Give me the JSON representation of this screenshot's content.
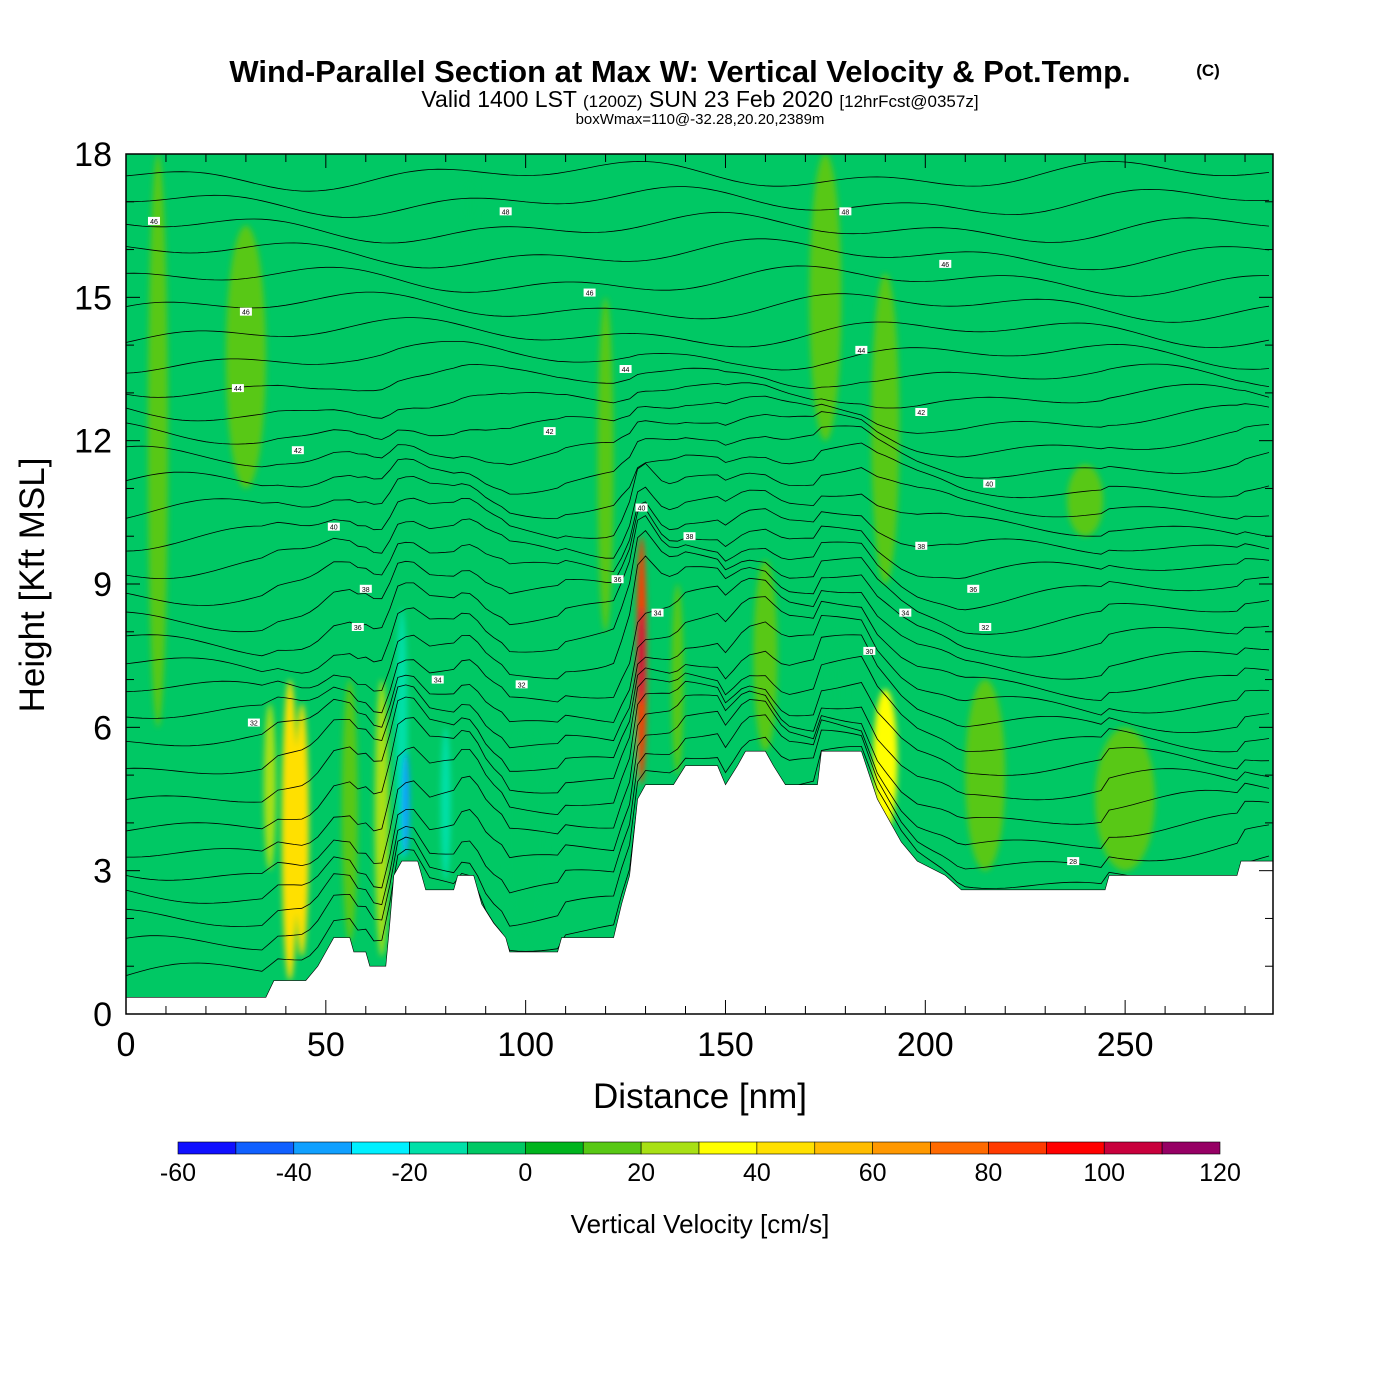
{
  "header": {
    "title": "Wind-Parallel Section at Max W: Vertical Velocity & Pot.Temp.",
    "copyright": "(C)",
    "valid_prefix": "Valid 1400 LST",
    "valid_utc": "(1200Z)",
    "valid_date": "SUN 23 Feb 2020",
    "forecast": "[12hrFcst@0357z]",
    "box_info": "boxWmax=110@-32.28,20.20,2389m"
  },
  "chart_data": {
    "type": "heatmap",
    "title": "Wind-Parallel Section at Max W: Vertical Velocity & Pot.Temp.",
    "xlabel": "Distance [nm]",
    "ylabel": "Height [Kft MSL]",
    "xlim": [
      0,
      287
    ],
    "ylim": [
      0,
      18
    ],
    "x_ticks": [
      0,
      50,
      100,
      150,
      200,
      250
    ],
    "x_tick_labels": [
      "0",
      "50",
      "100",
      "150",
      "200",
      "250"
    ],
    "y_ticks": [
      0,
      3,
      6,
      9,
      12,
      15,
      18
    ],
    "y_tick_labels": [
      "0",
      "3",
      "6",
      "9",
      "12",
      "15",
      "18"
    ],
    "colorbar": {
      "label": "Vertical Velocity [cm/s]",
      "min": -60,
      "max": 120,
      "step": 10,
      "tick_labels": [
        "-60",
        "-40",
        "-20",
        "0",
        "20",
        "40",
        "60",
        "80",
        "100",
        "120"
      ],
      "colors": [
        "#1010ff",
        "#1060ff",
        "#10a0ff",
        "#00f0ff",
        "#00e0a8",
        "#00c864",
        "#00b41e",
        "#58c814",
        "#a8e014",
        "#ffff00",
        "#ffe000",
        "#ffbc00",
        "#ff9800",
        "#ff6a00",
        "#ff3a00",
        "#ff0000",
        "#c8003c",
        "#960064"
      ]
    },
    "terrain": [
      [
        0,
        0.35
      ],
      [
        35,
        0.35
      ],
      [
        37,
        0.7
      ],
      [
        45,
        0.7
      ],
      [
        48,
        1.0
      ],
      [
        50,
        1.3
      ],
      [
        52,
        1.6
      ],
      [
        56,
        1.6
      ],
      [
        57,
        1.3
      ],
      [
        60,
        1.3
      ],
      [
        61,
        1.0
      ],
      [
        65,
        1.0
      ],
      [
        66,
        1.9
      ],
      [
        67,
        2.9
      ],
      [
        69,
        3.2
      ],
      [
        73,
        3.2
      ],
      [
        75,
        2.6
      ],
      [
        82,
        2.6
      ],
      [
        83,
        2.9
      ],
      [
        87,
        2.9
      ],
      [
        89,
        2.3
      ],
      [
        92,
        1.9
      ],
      [
        95,
        1.6
      ],
      [
        96,
        1.3
      ],
      [
        108,
        1.3
      ],
      [
        109,
        1.6
      ],
      [
        122,
        1.6
      ],
      [
        124,
        2.3
      ],
      [
        126,
        2.9
      ],
      [
        128,
        4.5
      ],
      [
        130,
        4.8
      ],
      [
        137,
        4.8
      ],
      [
        140,
        5.2
      ],
      [
        148,
        5.2
      ],
      [
        150,
        4.8
      ],
      [
        153,
        5.2
      ],
      [
        155,
        5.5
      ],
      [
        160,
        5.5
      ],
      [
        162,
        5.2
      ],
      [
        165,
        4.8
      ],
      [
        173,
        4.8
      ],
      [
        174,
        5.5
      ],
      [
        184,
        5.5
      ],
      [
        188,
        4.5
      ],
      [
        194,
        3.6
      ],
      [
        198,
        3.2
      ],
      [
        205,
        2.9
      ],
      [
        209,
        2.6
      ],
      [
        245,
        2.6
      ],
      [
        246,
        2.9
      ],
      [
        278,
        2.9
      ],
      [
        279,
        3.2
      ],
      [
        287,
        3.2
      ]
    ],
    "w_features": [
      {
        "x": 41,
        "y0": 0.7,
        "y1": 7.0,
        "w": 4,
        "value": 40
      },
      {
        "x": 44,
        "y0": 1.2,
        "y1": 6.5,
        "w": 3.5,
        "value": 45
      },
      {
        "x": 36,
        "y0": 3.0,
        "y1": 6.5,
        "w": 3,
        "value": 20
      },
      {
        "x": 56,
        "y0": 1.5,
        "y1": 7.0,
        "w": 4,
        "value": 10
      },
      {
        "x": 64,
        "y0": 1.2,
        "y1": 7.0,
        "w": 3.5,
        "value": 20
      },
      {
        "x": 69,
        "y0": 3.2,
        "y1": 8.5,
        "w": 3,
        "value": -20
      },
      {
        "x": 70,
        "y0": 3.3,
        "y1": 5.5,
        "w": 2,
        "value": -40
      },
      {
        "x": 80,
        "y0": 2.8,
        "y1": 6.0,
        "w": 2.5,
        "value": -20
      },
      {
        "x": 100,
        "y0": 1.5,
        "y1": 6.0,
        "w": 10,
        "value": -10
      },
      {
        "x": 125,
        "y0": 2.0,
        "y1": 7.0,
        "w": 5,
        "value": -10
      },
      {
        "x": 129,
        "y0": 4.8,
        "y1": 10.0,
        "w": 2.5,
        "value": 80
      },
      {
        "x": 129,
        "y0": 6.5,
        "y1": 8.5,
        "w": 1.5,
        "value": 100
      },
      {
        "x": 138,
        "y0": 5.0,
        "y1": 9.0,
        "w": 3,
        "value": 10
      },
      {
        "x": 160,
        "y0": 5.5,
        "y1": 9.5,
        "w": 6,
        "value": 10
      },
      {
        "x": 178,
        "y0": 5.5,
        "y1": 8.0,
        "w": 4,
        "value": -10
      },
      {
        "x": 190,
        "y0": 3.8,
        "y1": 6.8,
        "w": 6,
        "value": 30
      },
      {
        "x": 215,
        "y0": 3.0,
        "y1": 7.0,
        "w": 10,
        "value": 10
      },
      {
        "x": 250,
        "y0": 3.0,
        "y1": 6.0,
        "w": 15,
        "value": 10
      },
      {
        "x": 30,
        "y0": 11.0,
        "y1": 16.5,
        "w": 10,
        "value": 10
      },
      {
        "x": 8,
        "y0": 6.0,
        "y1": 18.0,
        "w": 5,
        "value": 10
      },
      {
        "x": 175,
        "y0": 12.0,
        "y1": 18.0,
        "w": 8,
        "value": 10
      },
      {
        "x": 190,
        "y0": 9.0,
        "y1": 15.5,
        "w": 7,
        "value": 10
      },
      {
        "x": 120,
        "y0": 8.0,
        "y1": 15.0,
        "w": 4,
        "value": 10
      },
      {
        "x": 240,
        "y0": 10.0,
        "y1": 11.5,
        "w": 9,
        "value": 10
      },
      {
        "x": 86,
        "y0": 16.0,
        "y1": 18.0,
        "w": 3,
        "value": -10
      },
      {
        "x": 184,
        "y0": 14.5,
        "y1": 15.5,
        "w": 1.5,
        "value": -10
      }
    ],
    "theta_labels": [
      {
        "x": 7,
        "y": 16.6,
        "text": "46"
      },
      {
        "x": 30,
        "y": 14.7,
        "text": "46"
      },
      {
        "x": 28,
        "y": 13.1,
        "text": "44"
      },
      {
        "x": 43,
        "y": 11.8,
        "text": "42"
      },
      {
        "x": 52,
        "y": 10.2,
        "text": "40"
      },
      {
        "x": 60,
        "y": 8.9,
        "text": "38"
      },
      {
        "x": 58,
        "y": 8.1,
        "text": "36"
      },
      {
        "x": 78,
        "y": 7.0,
        "text": "34"
      },
      {
        "x": 99,
        "y": 6.9,
        "text": "32"
      },
      {
        "x": 32,
        "y": 6.1,
        "text": "32"
      },
      {
        "x": 95,
        "y": 16.8,
        "text": "48"
      },
      {
        "x": 116,
        "y": 15.1,
        "text": "46"
      },
      {
        "x": 125,
        "y": 13.5,
        "text": "44"
      },
      {
        "x": 106,
        "y": 12.2,
        "text": "42"
      },
      {
        "x": 129,
        "y": 10.6,
        "text": "40"
      },
      {
        "x": 141,
        "y": 10.0,
        "text": "38"
      },
      {
        "x": 123,
        "y": 9.1,
        "text": "36"
      },
      {
        "x": 133,
        "y": 8.4,
        "text": "34"
      },
      {
        "x": 180,
        "y": 16.8,
        "text": "48"
      },
      {
        "x": 205,
        "y": 15.7,
        "text": "46"
      },
      {
        "x": 184,
        "y": 13.9,
        "text": "44"
      },
      {
        "x": 199,
        "y": 12.6,
        "text": "42"
      },
      {
        "x": 216,
        "y": 11.1,
        "text": "40"
      },
      {
        "x": 199,
        "y": 9.8,
        "text": "38"
      },
      {
        "x": 212,
        "y": 8.9,
        "text": "36"
      },
      {
        "x": 195,
        "y": 8.4,
        "text": "34"
      },
      {
        "x": 215,
        "y": 8.1,
        "text": "32"
      },
      {
        "x": 186,
        "y": 7.6,
        "text": "30"
      },
      {
        "x": 237,
        "y": 3.2,
        "text": "28"
      }
    ]
  }
}
